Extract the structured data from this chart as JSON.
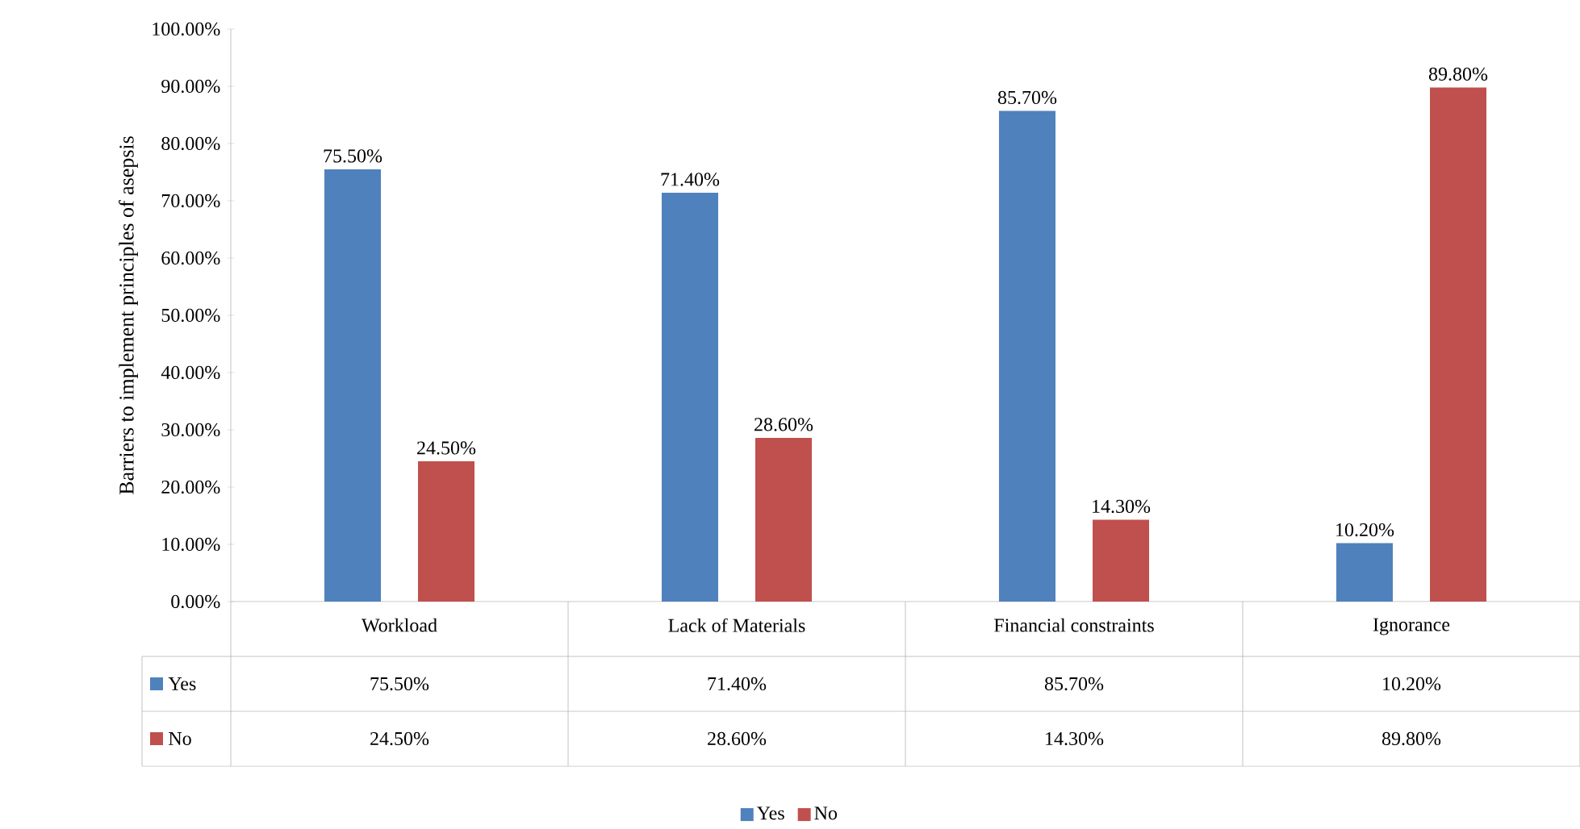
{
  "chart_data": {
    "type": "bar",
    "ylabel": "Barriers to implement principles of asepsis",
    "categories": [
      "Workload",
      "Lack of Materials",
      "Financial constraints",
      "Ignorance"
    ],
    "series": [
      {
        "name": "Yes",
        "color": "#4f81bd",
        "values": [
          75.5,
          71.4,
          85.7,
          10.2
        ],
        "value_labels": [
          "75.50%",
          "71.40%",
          "85.70%",
          "10.20%"
        ]
      },
      {
        "name": "No",
        "color": "#c0504d",
        "values": [
          24.5,
          28.6,
          14.3,
          89.8
        ],
        "value_labels": [
          "24.50%",
          "28.60%",
          "14.30%",
          "89.80%"
        ]
      }
    ],
    "ylim": [
      0,
      100
    ],
    "yticks": [
      {
        "value": 0,
        "label": "0.00%"
      },
      {
        "value": 10,
        "label": "10.00%"
      },
      {
        "value": 20,
        "label": "20.00%"
      },
      {
        "value": 30,
        "label": "30.00%"
      },
      {
        "value": 40,
        "label": "40.00%"
      },
      {
        "value": 50,
        "label": "50.00%"
      },
      {
        "value": 60,
        "label": "60.00%"
      },
      {
        "value": 70,
        "label": "70.00%"
      },
      {
        "value": 80,
        "label": "80.00%"
      },
      {
        "value": 90,
        "label": "90.00%"
      },
      {
        "value": 100,
        "label": "100.00%"
      }
    ],
    "legend": "bottom"
  }
}
